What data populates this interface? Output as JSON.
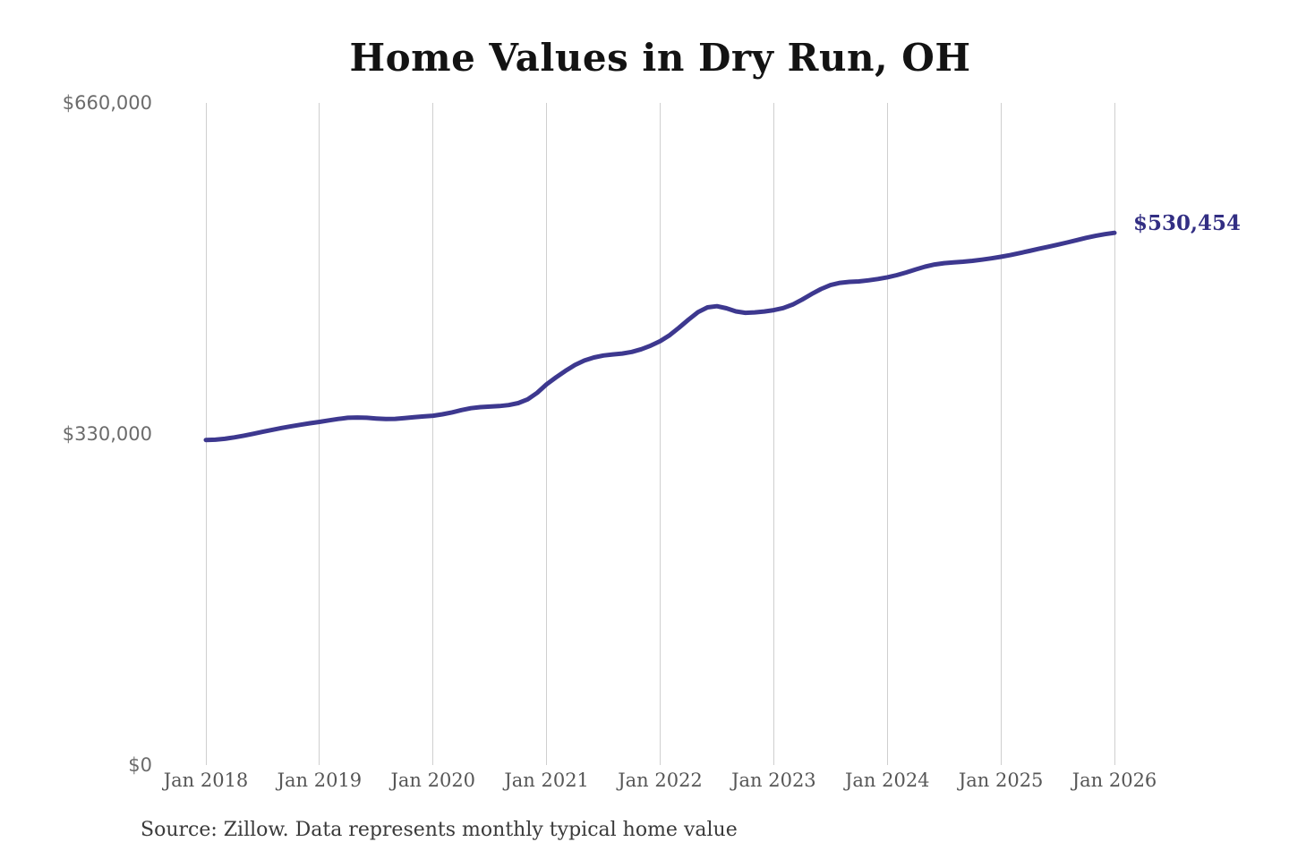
{
  "chart": {
    "title": "Home Values in Dry Run, OH",
    "annotation": {
      "label": "$530,454",
      "value": 530454
    },
    "source_note": "Source: Zillow. Data represents monthly typical home value",
    "colors": {
      "line": "#3d388f",
      "annotation_text": "#322e83",
      "gridline": "#cfcfcf",
      "y_tick_text": "#6b6b6b",
      "x_tick_text": "#565656",
      "title_text": "#131313",
      "source_text": "#3a3a3a",
      "background": "#ffffff"
    },
    "y_axis": {
      "ticks": [
        {
          "label": "$660,000",
          "value": 660000
        },
        {
          "label": "$330,000",
          "value": 330000
        },
        {
          "label": "$0",
          "value": 0
        }
      ]
    },
    "x_axis": {
      "ticks": [
        {
          "label": "Jan 2018",
          "month_index": 0
        },
        {
          "label": "Jan 2019",
          "month_index": 12
        },
        {
          "label": "Jan 2020",
          "month_index": 24
        },
        {
          "label": "Jan 2021",
          "month_index": 36
        },
        {
          "label": "Jan 2022",
          "month_index": 48
        },
        {
          "label": "Jan 2023",
          "month_index": 60
        },
        {
          "label": "Jan 2024",
          "month_index": 72
        },
        {
          "label": "Jan 2025",
          "month_index": 84
        },
        {
          "label": "Jan 2026",
          "month_index": 96
        }
      ]
    }
  },
  "chart_data": {
    "type": "line",
    "title": "Home Values in Dry Run, OH",
    "series_name": "Monthly typical home value",
    "unit": "USD",
    "x_interval": "monthly",
    "x_start": "Jan 2018",
    "x_end": "Jan 2026",
    "ylim": [
      0,
      660000
    ],
    "yticks": [
      0,
      330000,
      660000
    ],
    "xticks": [
      "Jan 2018",
      "Jan 2019",
      "Jan 2020",
      "Jan 2021",
      "Jan 2022",
      "Jan 2023",
      "Jan 2024",
      "Jan 2025",
      "Jan 2026"
    ],
    "grid": "vertical-only",
    "legend": false,
    "final_value": 530454,
    "final_value_label": "$530,454",
    "monthly_values_by_year": {
      "2018": [
        324000,
        324300,
        325200,
        326600,
        328300,
        330200,
        332100,
        334100,
        336000,
        337700,
        339200,
        340700
      ],
      "2019": [
        342000,
        343600,
        345000,
        346100,
        346400,
        346100,
        345400,
        344900,
        345100,
        345800,
        346700,
        347500
      ],
      "2020": [
        348200,
        349600,
        351500,
        353800,
        355700,
        356800,
        357300,
        357800,
        358800,
        360800,
        364500,
        371000
      ],
      "2021": [
        379500,
        386500,
        393000,
        398800,
        403200,
        406300,
        408200,
        409300,
        410200,
        411800,
        414500,
        418000
      ],
      "2022": [
        422500,
        428500,
        436000,
        444000,
        451500,
        456200,
        457400,
        455300,
        452200,
        450800,
        451200,
        452100
      ],
      "2023": [
        453400,
        455500,
        459000,
        464000,
        469500,
        474500,
        478400,
        480600,
        481600,
        482100,
        483100,
        484500
      ],
      "2024": [
        486200,
        488300,
        491000,
        494000,
        496800,
        498900,
        500300,
        501100,
        501700,
        502600,
        503700,
        505100
      ],
      "2025": [
        506600,
        508300,
        510300,
        512400,
        514500,
        516600,
        518700,
        520900,
        523200,
        525500,
        527500,
        529200
      ],
      "2026": [
        530454
      ]
    }
  }
}
